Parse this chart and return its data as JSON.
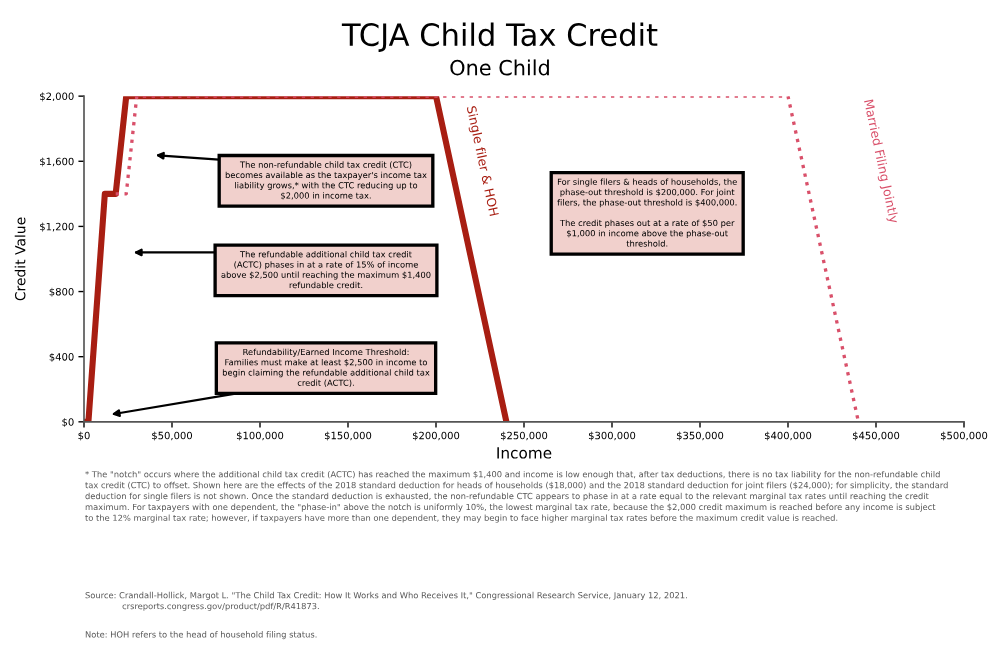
{
  "chart_data": {
    "type": "line",
    "title": "TCJA Child Tax Credit",
    "subtitle": "One Child",
    "xlabel": "Income",
    "ylabel": "Credit Value",
    "xlim": [
      0,
      500000
    ],
    "ylim": [
      0,
      2000
    ],
    "xticks": [
      {
        "value": 0,
        "label": "$0"
      },
      {
        "value": 50000,
        "label": "$50,000"
      },
      {
        "value": 100000,
        "label": "$100,000"
      },
      {
        "value": 150000,
        "label": "$150,000"
      },
      {
        "value": 200000,
        "label": "$200,000"
      },
      {
        "value": 250000,
        "label": "$250,000"
      },
      {
        "value": 300000,
        "label": "$300,000"
      },
      {
        "value": 350000,
        "label": "$350,000"
      },
      {
        "value": 400000,
        "label": "$400,000"
      },
      {
        "value": 450000,
        "label": "$450,000"
      },
      {
        "value": 500000,
        "label": "$500,000"
      }
    ],
    "yticks": [
      {
        "value": 0,
        "label": "$0"
      },
      {
        "value": 400,
        "label": "$400"
      },
      {
        "value": 800,
        "label": "$800"
      },
      {
        "value": 1200,
        "label": "$1,200"
      },
      {
        "value": 1600,
        "label": "$1,600"
      },
      {
        "value": 2000,
        "label": "$2,000"
      }
    ],
    "grid": false,
    "legend": false,
    "marker": "none",
    "series": [
      {
        "name": "Single filer & HOH",
        "color": "#a81e12",
        "line_style": "solid",
        "x": [
          0,
          2500,
          11833,
          18000,
          24000,
          200000,
          240000
        ],
        "values": [
          0,
          0,
          1400,
          1400,
          2000,
          2000,
          0
        ]
      },
      {
        "name": "Married Filing Jointly",
        "color": "#d9506a",
        "line_style": "dotted",
        "x": [
          18000,
          24000,
          30000,
          400000,
          440000
        ],
        "values": [
          1400,
          1400,
          2000,
          2000,
          0
        ]
      }
    ],
    "annotations": [
      "The non-refundable child tax credit (CTC)\nbecomes available as the taxpayer's income tax\nliability grows,* with the CTC reducing up to\n$2,000 in income tax.",
      "The refundable additional child tax credit\n(ACTC) phases in at a rate of 15% of income\nabove $2,500 until reaching the maximum $1,400\nrefundable credit.",
      "Refundability/Earned Income Threshold:\nFamilies must make at least $2,500 in income to\nbegin claiming the refundable additional child tax\ncredit (ACTC).",
      "For single filers & heads of households, the\nphase-out threshold is $200,000. For joint\nfilers, the phase-out threshold is $400,000.\n\nThe credit phases out at a rate of $50 per\n$1,000 in income above the phase-out\nthreshold.",
      "* The \"notch\" occurs where the additional child tax credit (ACTC) has reached the maximum $1,400 and income is low enough that, after tax deductions, there is no tax liability for the non-refundable child tax credit (CTC) to offset. Shown here are the effects of the 2018 standard deduction for heads of households ($18,000) and the 2018 standard deduction for joint filers ($24,000); for simplicity, the standard deduction for single filers is not shown. Once the standard deduction is exhausted, the non-refundable CTC appears to phase in at a rate equal to the relevant marginal tax rates until reaching the credit maximum. For taxpayers with one dependent, the \"phase-in\" above the notch is uniformly 10%, the lowest marginal tax rate, because the $2,000 credit maximum is reached before any income is subject to the 12% marginal tax rate; however, if taxpayers have more than one dependent, they may begin to face higher marginal tax rates before the maximum credit value is reached.",
      "Source: Crandall-Hollick, Margot L. \"The Child Tax Credit: How It Works and Who Receives It,\" Congressional Research Service, January 12, 2021.\n              crsreports.congress.gov/product/pdf/R/R41873.",
      "Note: HOH refers to the head of household filing status."
    ]
  }
}
